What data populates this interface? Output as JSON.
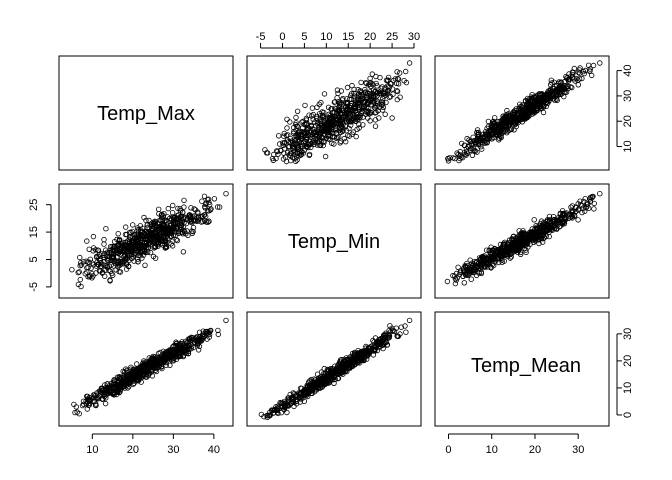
{
  "chart_data": {
    "type": "scatter",
    "subtype": "pairs-matrix",
    "title": "",
    "variables": [
      "Temp_Max",
      "Temp_Min",
      "Temp_Mean"
    ],
    "ranges": {
      "Temp_Max": [
        3.5,
        43
      ],
      "Temp_Min": [
        -6.5,
        30
      ],
      "Temp_Mean": [
        -1.5,
        35.5
      ]
    },
    "ticks": {
      "Temp_Max": [
        10,
        20,
        30,
        40
      ],
      "Temp_Min": [
        -5,
        0,
        5,
        10,
        15,
        20,
        25,
        30
      ],
      "Temp_Min_left": [
        -5,
        5,
        15,
        25
      ],
      "Temp_Mean": [
        0,
        10,
        20,
        30
      ]
    },
    "relationships": [
      {
        "x": "Temp_Min",
        "y": "Temp_Max",
        "slope": 1.0,
        "intercept": 8.0,
        "spread": 4.5
      },
      {
        "x": "Temp_Mean",
        "y": "Temp_Max",
        "slope": 1.1,
        "intercept": 4.5,
        "spread": 1.9
      },
      {
        "x": "Temp_Max",
        "y": "Temp_Min",
        "slope": 0.72,
        "intercept": -4.5,
        "spread": 3.2
      },
      {
        "x": "Temp_Mean",
        "y": "Temp_Min",
        "slope": 0.86,
        "intercept": -3.0,
        "spread": 1.6
      },
      {
        "x": "Temp_Max",
        "y": "Temp_Mean",
        "slope": 0.86,
        "intercept": -3.0,
        "spread": 1.5
      },
      {
        "x": "Temp_Min",
        "y": "Temp_Mean",
        "slope": 1.05,
        "intercept": 3.2,
        "spread": 1.3
      }
    ],
    "extreme_point": {
      "Temp_Max": 43,
      "Temp_Min": 29,
      "Temp_Mean": 35
    },
    "marker": "open circle",
    "sample_points_per_panel": 700
  }
}
